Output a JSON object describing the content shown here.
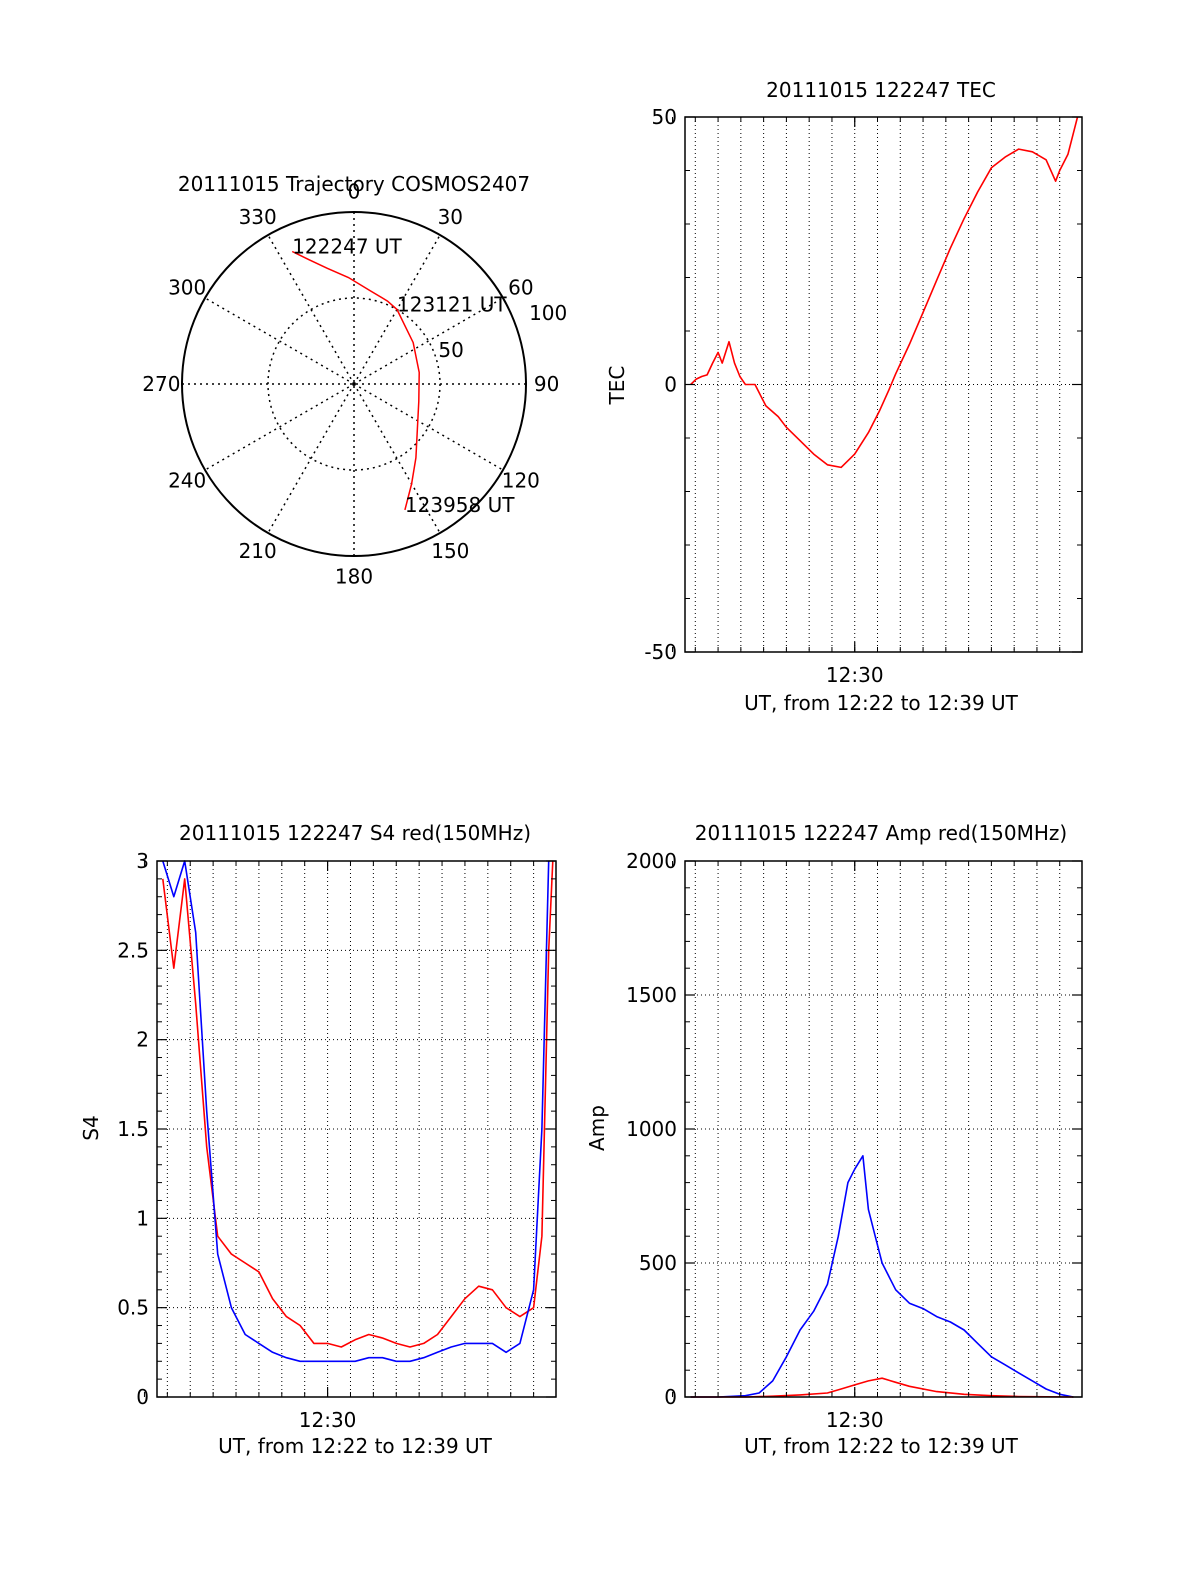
{
  "colors": {
    "red": "#ff0000",
    "blue": "#0000ff",
    "axis": "#000000",
    "grid": "#000000"
  },
  "chart_data": [
    {
      "id": "trajectory",
      "type": "polar",
      "title": "20111015 Trajectory COSMOS2407",
      "angle_labels": [
        "0",
        "30",
        "60",
        "90",
        "120",
        "150",
        "180",
        "210",
        "240",
        "270",
        "300",
        "330"
      ],
      "angle_values": [
        0,
        30,
        60,
        90,
        120,
        150,
        180,
        210,
        240,
        270,
        300,
        330
      ],
      "radial_labels": [
        "50",
        "100"
      ],
      "radial_values": [
        50,
        100
      ],
      "radial_max": 100,
      "grid": true,
      "track_color": "red",
      "track": {
        "azimuth": [
          -25.0,
          -20.0,
          -13.0,
          -3.0,
          10.0,
          22.0,
          30.0,
          55.0,
          80.0,
          105.0,
          125.0,
          140.0,
          150.0,
          158.0
        ],
        "radius": [
          85.0,
          77.0,
          69.0,
          62.0,
          55.0,
          52.0,
          50.0,
          42.0,
          38.5,
          39.0,
          45.0,
          56.0,
          67.0,
          79.0
        ]
      },
      "annotations": [
        {
          "text": "122247 UT",
          "azimuth": -25.0,
          "radius": 85.0
        },
        {
          "text": "123121 UT",
          "azimuth": 30.0,
          "radius": 50.0
        },
        {
          "text": "123958 UT",
          "azimuth": 158.0,
          "radius": 79.0
        }
      ]
    },
    {
      "id": "tec",
      "type": "line",
      "title": "20111015 122247 TEC",
      "ylabel": "TEC",
      "xlabel": "UT, from 12:22 to 12:39 UT",
      "xtick_labels": [
        "12:30"
      ],
      "xtick_values": [
        12.5
      ],
      "xlim": [
        12.3758,
        12.6663
      ],
      "ylim": [
        -50,
        50
      ],
      "ytick_values": [
        -50,
        0,
        50
      ],
      "ytick_labels": [
        "-50",
        "0",
        "50"
      ],
      "grid": true,
      "series": [
        {
          "color": "red",
          "x": [
            12.38,
            12.384,
            12.388,
            12.392,
            12.396,
            12.4,
            12.403,
            12.408,
            12.412,
            12.416,
            12.42,
            12.427,
            12.435,
            12.444,
            12.45,
            12.46,
            12.47,
            12.48,
            12.49,
            12.5,
            12.51,
            12.518,
            12.525,
            12.53,
            12.54,
            12.55,
            12.56,
            12.57,
            12.58,
            12.59,
            12.6,
            12.61,
            12.62,
            12.63,
            12.64,
            12.647,
            12.65,
            12.656,
            12.66,
            12.663
          ],
          "y": [
            0.0,
            1.0,
            1.5,
            1.8,
            4.0,
            6.0,
            4.0,
            8.0,
            4.0,
            1.5,
            0.0,
            0.0,
            -4.0,
            -6.0,
            -8.0,
            -10.5,
            -13.0,
            -15.0,
            -15.5,
            -13.0,
            -9.0,
            -5.0,
            -1.0,
            2.0,
            7.5,
            13.5,
            19.5,
            25.5,
            31.0,
            36.0,
            40.5,
            42.5,
            44.0,
            43.5,
            42.0,
            38.0,
            40.0,
            43.0,
            47.0,
            50.0
          ]
        }
      ]
    },
    {
      "id": "s4",
      "type": "line",
      "title": "20111015 122247 S4 red(150MHz)",
      "ylabel": "S4",
      "xlabel": "UT, from 12:22 to 12:39 UT",
      "xtick_labels": [
        "12:30"
      ],
      "xtick_values": [
        12.5
      ],
      "xlim": [
        12.3758,
        12.6663
      ],
      "ylim": [
        0,
        3
      ],
      "ytick_values": [
        0,
        0.5,
        1,
        1.5,
        2,
        2.5,
        3
      ],
      "ytick_labels": [
        "0",
        "0.5",
        "1",
        "1.5",
        "2",
        "2.5",
        "3"
      ],
      "grid": true,
      "series": [
        {
          "color": "red",
          "x": [
            12.38,
            12.388,
            12.396,
            12.404,
            12.412,
            12.42,
            12.43,
            12.44,
            12.45,
            12.46,
            12.47,
            12.48,
            12.49,
            12.5,
            12.51,
            12.52,
            12.53,
            12.54,
            12.55,
            12.56,
            12.57,
            12.58,
            12.59,
            12.6,
            12.61,
            12.62,
            12.63,
            12.64,
            12.65,
            12.656,
            12.661,
            12.664
          ],
          "y": [
            2.9,
            2.4,
            2.9,
            2.2,
            1.4,
            0.9,
            0.8,
            0.75,
            0.7,
            0.55,
            0.45,
            0.4,
            0.3,
            0.3,
            0.28,
            0.32,
            0.35,
            0.33,
            0.3,
            0.28,
            0.3,
            0.35,
            0.45,
            0.55,
            0.62,
            0.6,
            0.5,
            0.45,
            0.5,
            0.9,
            2.5,
            3.0
          ]
        },
        {
          "color": "blue",
          "x": [
            12.38,
            12.388,
            12.396,
            12.404,
            12.412,
            12.42,
            12.43,
            12.44,
            12.45,
            12.46,
            12.47,
            12.48,
            12.49,
            12.5,
            12.51,
            12.52,
            12.53,
            12.54,
            12.55,
            12.56,
            12.57,
            12.58,
            12.59,
            12.6,
            12.61,
            12.62,
            12.63,
            12.64,
            12.65,
            12.656,
            12.661
          ],
          "y": [
            3.0,
            2.8,
            3.0,
            2.6,
            1.6,
            0.8,
            0.5,
            0.35,
            0.3,
            0.25,
            0.22,
            0.2,
            0.2,
            0.2,
            0.2,
            0.2,
            0.22,
            0.22,
            0.2,
            0.2,
            0.22,
            0.25,
            0.28,
            0.3,
            0.3,
            0.3,
            0.25,
            0.3,
            0.6,
            1.5,
            3.0
          ]
        }
      ]
    },
    {
      "id": "amp",
      "type": "line",
      "title": "20111015 122247 Amp red(150MHz)",
      "ylabel": "Amp",
      "xlabel": "UT, from 12:22 to 12:39 UT",
      "xtick_labels": [
        "12:30"
      ],
      "xtick_values": [
        12.5
      ],
      "xlim": [
        12.3758,
        12.6663
      ],
      "ylim": [
        0,
        2000
      ],
      "ytick_values": [
        0,
        500,
        1000,
        1500,
        2000
      ],
      "ytick_labels": [
        "0",
        "500",
        "1000",
        "1500",
        "2000"
      ],
      "grid": true,
      "series": [
        {
          "color": "blue",
          "x": [
            12.38,
            12.4,
            12.42,
            12.43,
            12.44,
            12.45,
            12.46,
            12.47,
            12.48,
            12.488,
            12.495,
            12.5,
            12.506,
            12.51,
            12.515,
            12.52,
            12.53,
            12.54,
            12.55,
            12.56,
            12.57,
            12.58,
            12.59,
            12.6,
            12.61,
            12.62,
            12.63,
            12.64,
            12.65,
            12.66
          ],
          "y": [
            0,
            0,
            5,
            15,
            60,
            150,
            250,
            320,
            420,
            600,
            800,
            850,
            900,
            700,
            600,
            500,
            400,
            350,
            330,
            300,
            280,
            250,
            200,
            150,
            120,
            90,
            60,
            30,
            10,
            0
          ]
        },
        {
          "color": "red",
          "x": [
            12.38,
            12.42,
            12.44,
            12.46,
            12.48,
            12.49,
            12.5,
            12.51,
            12.52,
            12.53,
            12.54,
            12.56,
            12.58,
            12.6,
            12.62,
            12.66
          ],
          "y": [
            0,
            0,
            3,
            8,
            15,
            30,
            45,
            60,
            70,
            55,
            40,
            20,
            10,
            5,
            2,
            0
          ]
        }
      ]
    }
  ]
}
